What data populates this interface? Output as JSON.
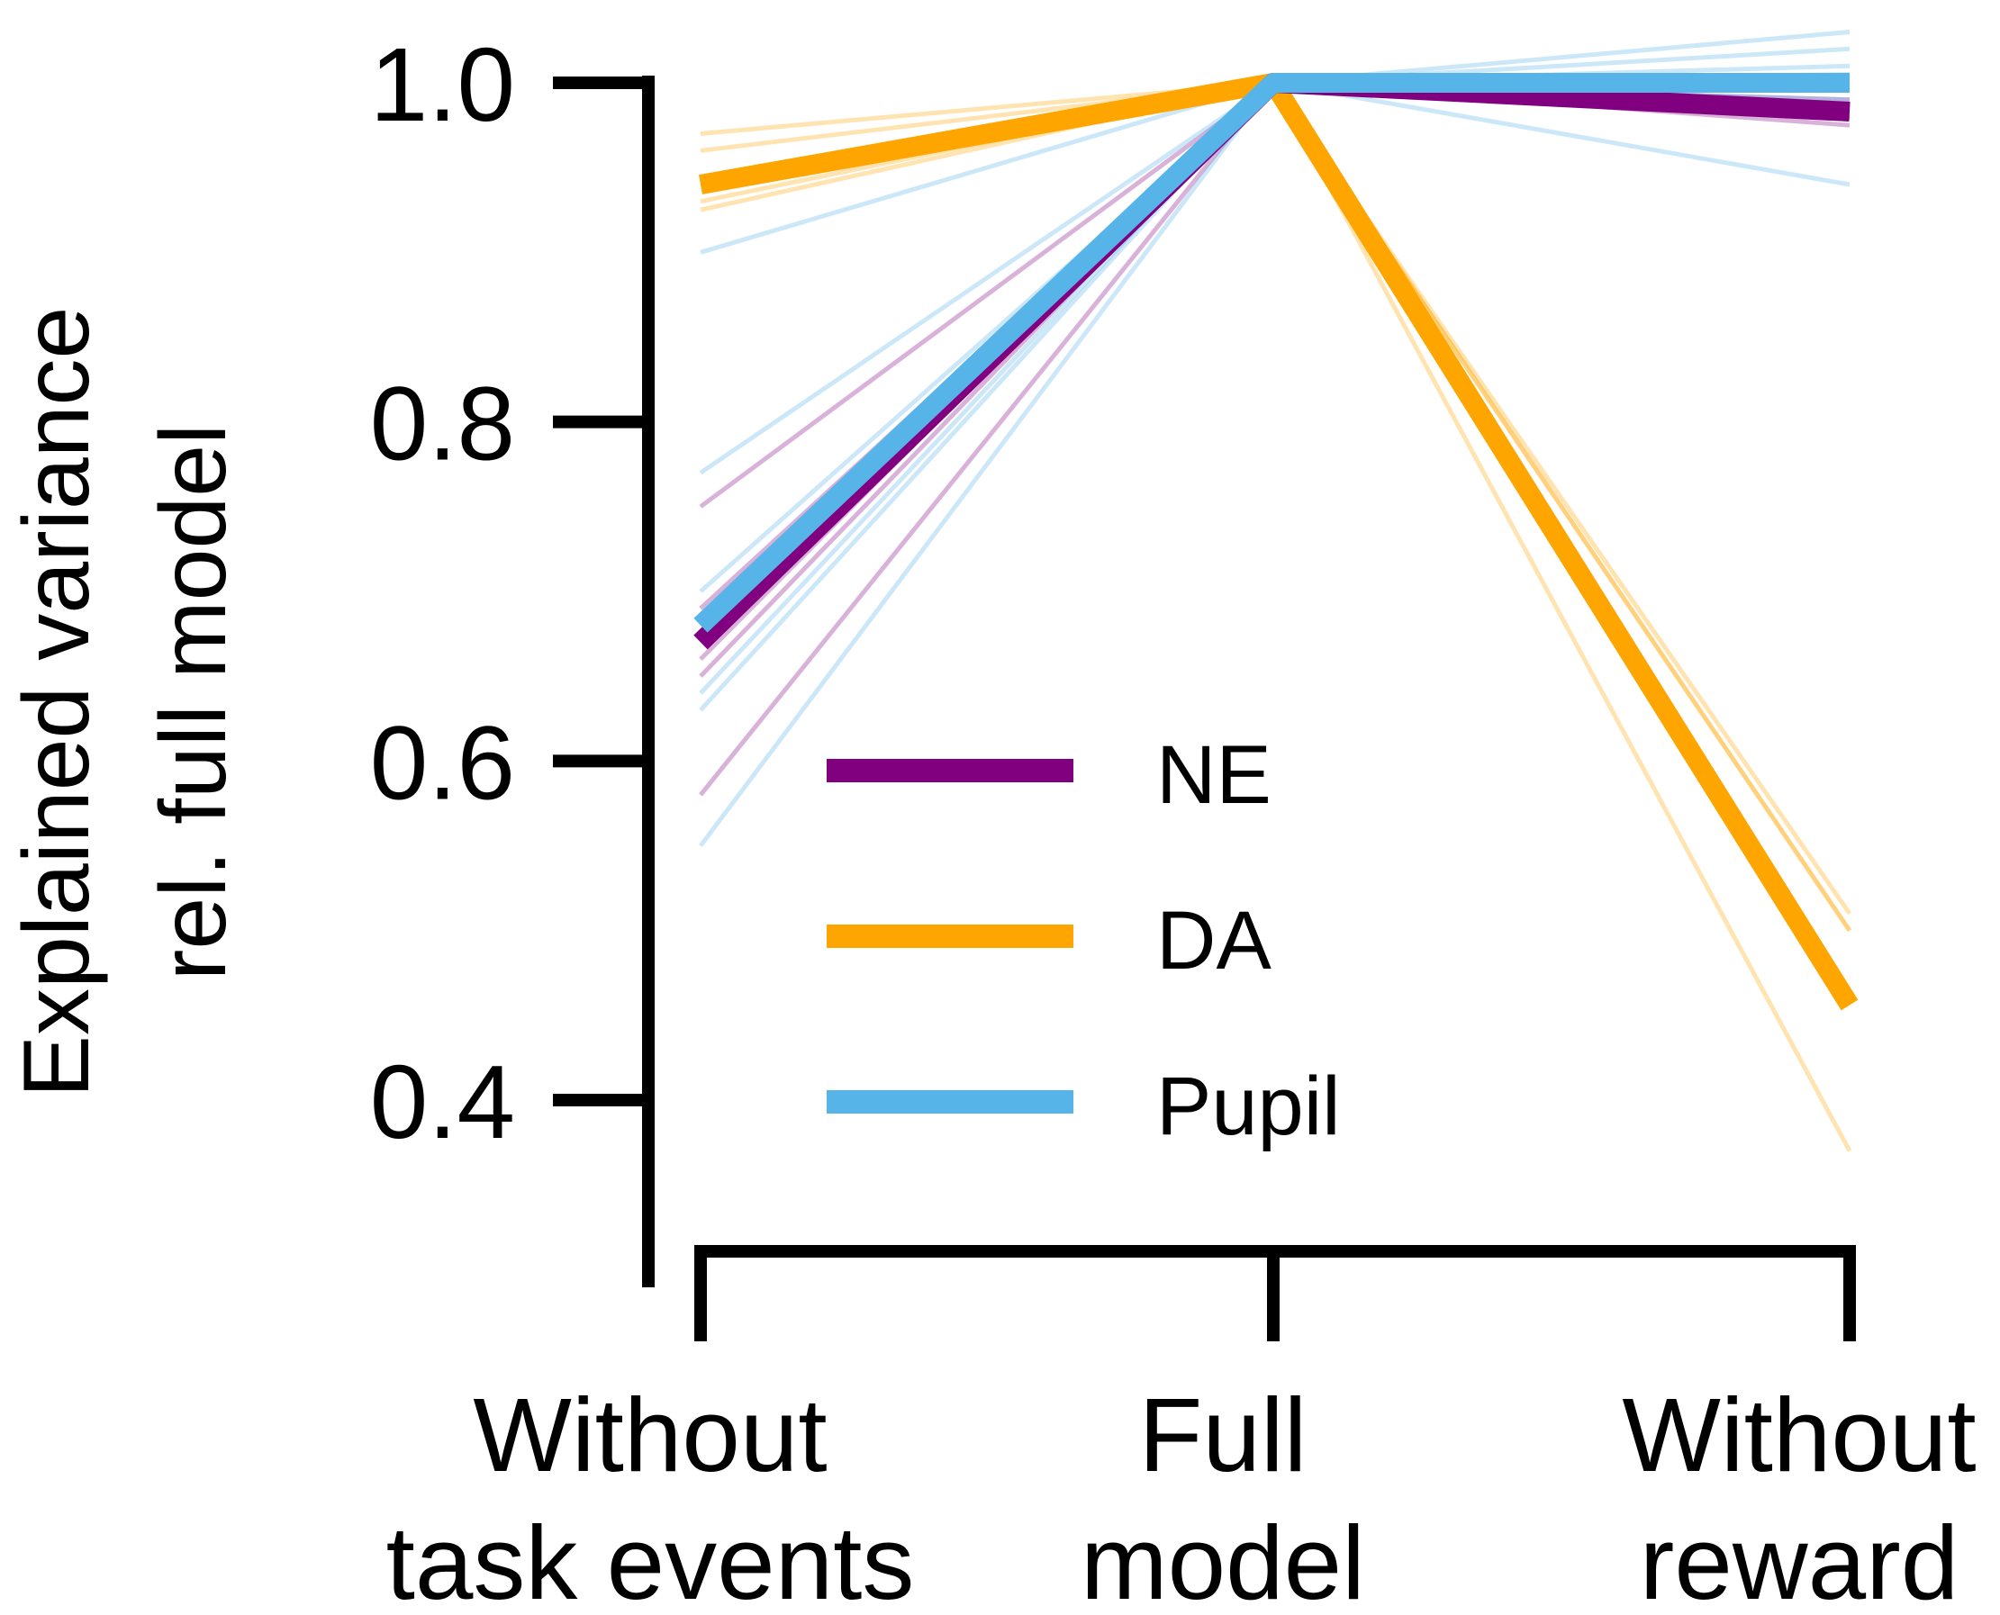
{
  "chart_data": {
    "type": "line",
    "title": "",
    "ylabel_lines": [
      "Explained variance",
      "rel. full model"
    ],
    "xlabel": "",
    "categories": [
      [
        "Without",
        "task events"
      ],
      [
        "Full",
        "model"
      ],
      [
        "Without",
        "reward"
      ]
    ],
    "yticks": [
      "1.0",
      "0.8",
      "0.6",
      "0.4"
    ],
    "ytick_values": [
      1.0,
      0.8,
      0.6,
      0.4
    ],
    "ylim": [
      0.33,
      1.0
    ],
    "legend": {
      "placement": "center",
      "entries": [
        {
          "name": "NE",
          "color": "#800080"
        },
        {
          "name": "DA",
          "color": "#FFA500"
        },
        {
          "name": "Pupil",
          "color": "#56B4E9"
        }
      ]
    },
    "series": [
      {
        "name": "NE",
        "color": "#800080",
        "values": [
          0.67,
          1.0,
          0.983
        ]
      },
      {
        "name": "DA",
        "color": "#FFA500",
        "values": [
          0.94,
          1.0,
          0.456
        ]
      },
      {
        "name": "Pupil",
        "color": "#56B4E9",
        "values": [
          0.68,
          1.0,
          1.0
        ]
      }
    ],
    "individual_series": [
      {
        "group": "NE",
        "values": [
          0.75,
          1.0,
          0.98
        ]
      },
      {
        "group": "NE",
        "values": [
          0.69,
          1.0,
          0.983
        ]
      },
      {
        "group": "NE",
        "values": [
          0.66,
          1.0,
          0.985
        ]
      },
      {
        "group": "NE",
        "values": [
          0.65,
          1.0,
          0.99
        ]
      },
      {
        "group": "NE",
        "values": [
          0.58,
          1.0,
          0.975
        ]
      },
      {
        "group": "DA",
        "values": [
          0.97,
          1.0,
          0.5
        ]
      },
      {
        "group": "DA",
        "values": [
          0.96,
          1.0,
          0.51
        ]
      },
      {
        "group": "DA",
        "values": [
          0.93,
          1.0,
          0.5
        ]
      },
      {
        "group": "DA",
        "values": [
          0.925,
          1.0,
          0.37
        ]
      },
      {
        "group": "Pupil",
        "values": [
          0.9,
          1.0,
          0.94
        ]
      },
      {
        "group": "Pupil",
        "values": [
          0.77,
          1.0,
          1.03
        ]
      },
      {
        "group": "Pupil",
        "values": [
          0.7,
          1.0,
          1.02
        ]
      },
      {
        "group": "Pupil",
        "values": [
          0.64,
          1.0,
          1.01
        ]
      },
      {
        "group": "Pupil",
        "values": [
          0.63,
          1.0,
          1.005
        ]
      },
      {
        "group": "Pupil",
        "values": [
          0.55,
          1.0,
          0.99
        ]
      }
    ]
  }
}
